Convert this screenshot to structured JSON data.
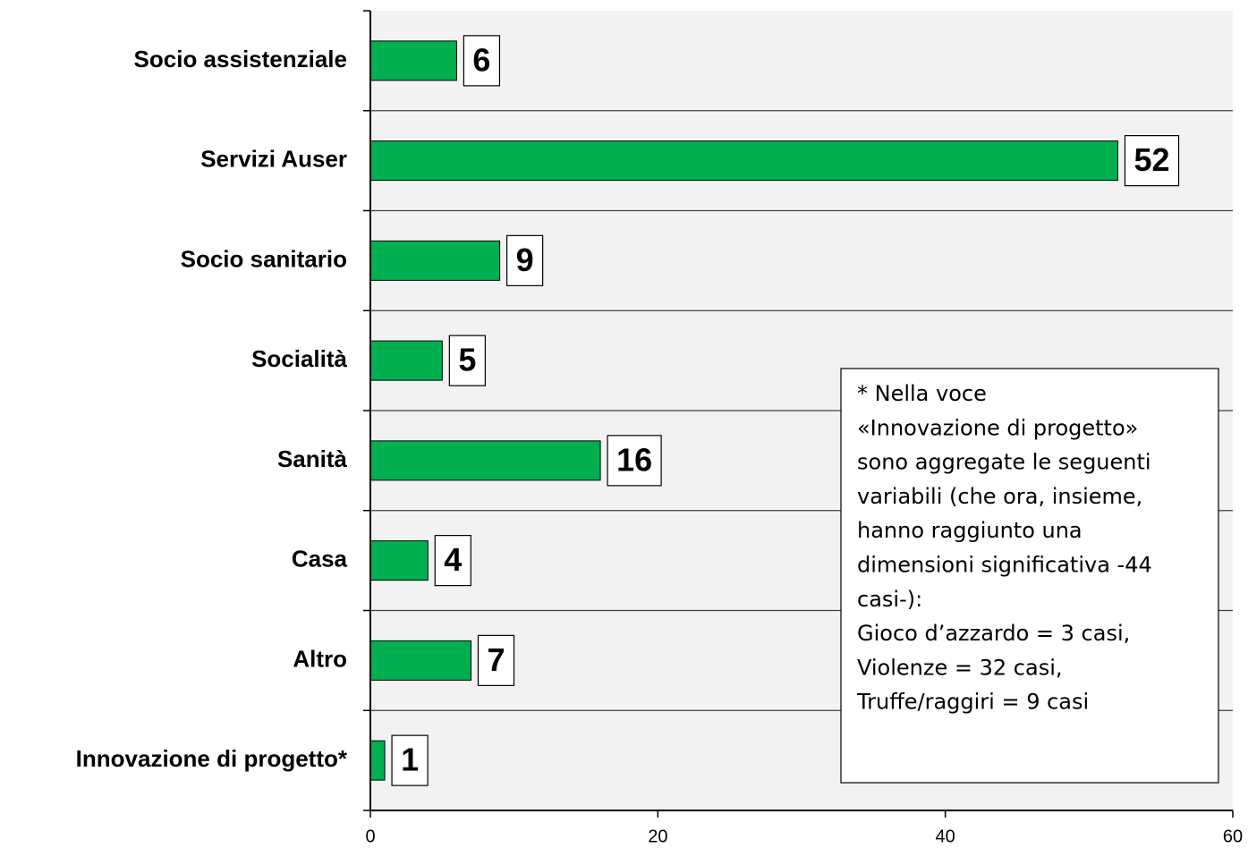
{
  "chart_data": {
    "type": "bar",
    "orientation": "horizontal",
    "categories": [
      "Socio assistenziale",
      "Servizi Auser",
      "Socio sanitario",
      "Socialità",
      "Sanità",
      "Casa",
      "Altro",
      "Innovazione di progetto*"
    ],
    "values": [
      6,
      52,
      9,
      5,
      16,
      4,
      7,
      1
    ],
    "color": "#00b050",
    "xlim": [
      0,
      60
    ],
    "xticks": [
      0,
      20,
      40,
      60
    ],
    "annotation": [
      "* Nella voce",
      "«Innovazione di progetto»",
      "sono aggregate le seguenti",
      "variabili (che ora, insieme,",
      "hanno raggiunto una",
      "dimensioni significativa -44",
      "casi-):",
      "Gioco d’azzardo =  3 casi,",
      "Violenze = 32 casi,",
      "Truffe/raggiri = 9 casi"
    ]
  }
}
